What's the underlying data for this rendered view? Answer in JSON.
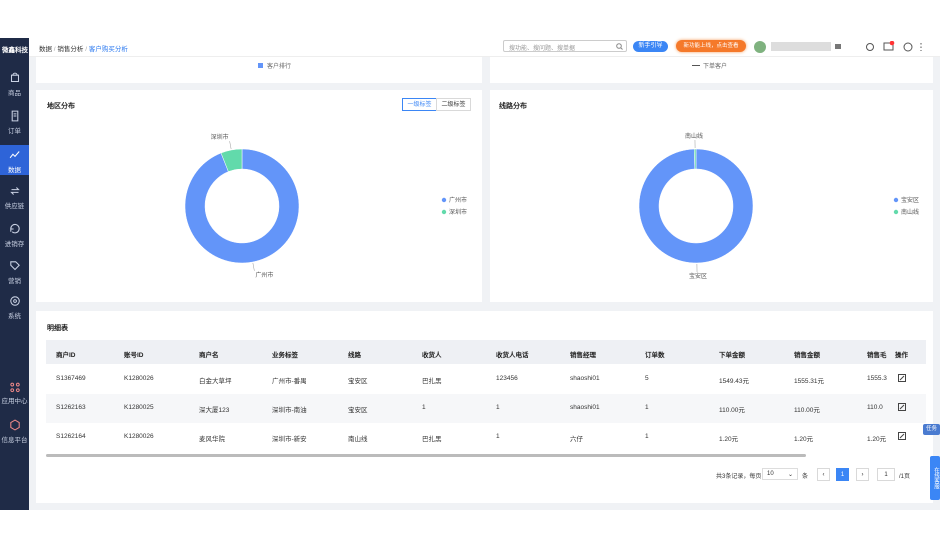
{
  "header": {
    "logo": "微鑫科技",
    "breadcrumb": [
      "数据",
      "销售分析",
      "客户购买分析"
    ],
    "search_placeholder": "搜功能、搜问题、搜单据",
    "guide_button": "新手引导",
    "news_button": "新功能上线，点击查看"
  },
  "sidebar": {
    "items": [
      "商品",
      "订单",
      "数据",
      "供应链",
      "进销存",
      "营销",
      "系统"
    ],
    "bottom_items": [
      "应用中心",
      "信息平台"
    ]
  },
  "top_cards": {
    "left_legend": "客户排行",
    "right_legend": "下单客户"
  },
  "region_tabs": [
    "一级标签",
    "二级标签"
  ],
  "chart_data": [
    {
      "type": "donut",
      "title": "地区分布",
      "categories": [
        "广州市",
        "深圳市"
      ],
      "values": [
        94,
        6
      ],
      "colors": [
        "#6395f9",
        "#62daab"
      ]
    },
    {
      "type": "donut",
      "title": "线路分布",
      "categories": [
        "宝安区",
        "南山线"
      ],
      "values": [
        99.5,
        0.5
      ],
      "colors": [
        "#6395f9",
        "#62daab"
      ]
    }
  ],
  "table": {
    "title": "明细表",
    "columns": [
      "商户ID",
      "账号ID",
      "商户名",
      "业务标签",
      "线路",
      "收货人",
      "收货人电话",
      "销售经理",
      "订单数",
      "下单金额",
      "销售金额",
      "销售毛",
      "操作"
    ],
    "rows": [
      [
        "S1367469",
        "K1280026",
        "白金大草坪",
        "广州市-番禺",
        "宝安区",
        "巴扎黑",
        "123456",
        "shaoshi01",
        "5",
        "1549.43元",
        "1555.31元",
        "1555.3"
      ],
      [
        "S1262163",
        "K1280025",
        "深大厦123",
        "深圳市-南油",
        "宝安区",
        "1",
        "1",
        "shaoshi01",
        "1",
        "110.00元",
        "110.00元",
        "110.0"
      ],
      [
        "S1262164",
        "K1280026",
        "麦风华院",
        "深圳市-新安",
        "南山线",
        "巴扎黑",
        "1",
        "六仔",
        "1",
        "1.20元",
        "1.20元",
        "1.20元"
      ]
    ]
  },
  "pagination": {
    "summary": "共3条记录，每页",
    "page_size": "10",
    "unit": "条",
    "page": "1",
    "goto": "1",
    "total_pages": "/1页"
  },
  "float": {
    "task": "任务",
    "service": "在线客服"
  }
}
